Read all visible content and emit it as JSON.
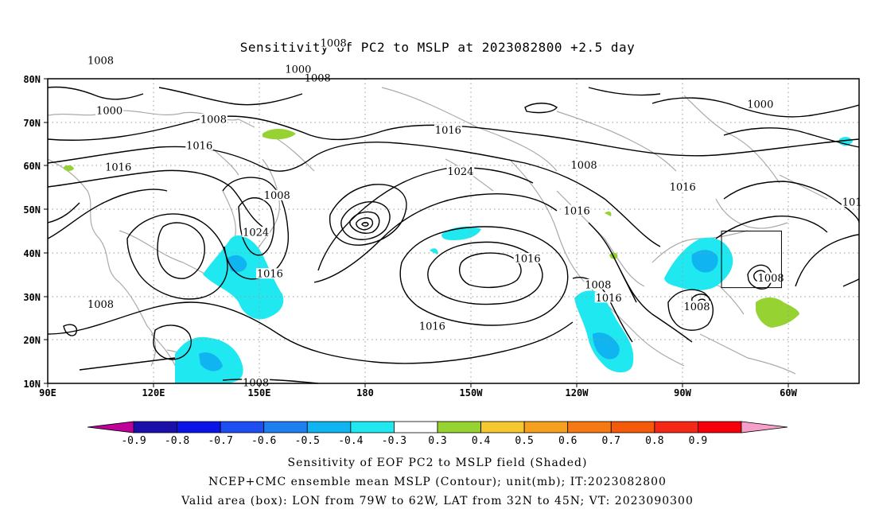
{
  "title": "Sensitivity of PC2 to MSLP at 2023082800 +2.5 day",
  "map": {
    "lat_labels": [
      "80N",
      "70N",
      "60N",
      "50N",
      "40N",
      "30N",
      "20N",
      "10N"
    ],
    "lon_labels": [
      "90E",
      "120E",
      "150E",
      "180",
      "150W",
      "120W",
      "90W",
      "60W"
    ],
    "lon_range": [
      90,
      320
    ],
    "lat_range": [
      10,
      80
    ],
    "contour_labels": [
      {
        "text": "1000",
        "lon": 107.5,
        "lat": 72.5
      },
      {
        "text": "1008",
        "lon": 137,
        "lat": 70.5
      },
      {
        "text": "1016",
        "lon": 133,
        "lat": 64.5
      },
      {
        "text": "1016",
        "lon": 110,
        "lat": 59.5
      },
      {
        "text": "1008",
        "lon": 155,
        "lat": 53
      },
      {
        "text": "1024",
        "lon": 149,
        "lat": 44.5
      },
      {
        "text": "1016",
        "lon": 153,
        "lat": 35
      },
      {
        "text": "1008",
        "lon": 105,
        "lat": 28
      },
      {
        "text": "1008",
        "lon": 149,
        "lat": 10
      },
      {
        "text": "1008",
        "lon": 166.5,
        "lat": 80
      },
      {
        "text": "1008",
        "lon": 105,
        "lat": 84
      },
      {
        "text": "1000",
        "lon": 161,
        "lat": 82
      },
      {
        "text": "1008",
        "lon": 171,
        "lat": 88
      },
      {
        "text": "1016",
        "lon": 203.5,
        "lat": 68
      },
      {
        "text": "1024",
        "lon": 207,
        "lat": 58.5
      },
      {
        "text": "1016",
        "lon": 240,
        "lat": 49.5
      },
      {
        "text": "1008",
        "lon": 242,
        "lat": 60
      },
      {
        "text": "1016",
        "lon": 270,
        "lat": 55
      },
      {
        "text": "1000",
        "lon": 292,
        "lat": 74
      },
      {
        "text": "1016",
        "lon": 199,
        "lat": 23
      },
      {
        "text": "1016",
        "lon": 226,
        "lat": 38.5
      },
      {
        "text": "1008",
        "lon": 246,
        "lat": 32.5
      },
      {
        "text": "1016",
        "lon": 249,
        "lat": 29.5
      },
      {
        "text": "1008",
        "lon": 274,
        "lat": 27.5
      },
      {
        "text": "1008",
        "lon": 295,
        "lat": 34
      },
      {
        "text": "101",
        "lon": 318,
        "lat": 51.5
      }
    ],
    "valid_box": {
      "lon_west": -79,
      "lon_east": -62,
      "lat_south": 32,
      "lat_north": 45
    }
  },
  "colorbar": {
    "colors": [
      "#c0009a",
      "#1a0fa8",
      "#0a14e8",
      "#1e4df0",
      "#1e7ff0",
      "#10b4f0",
      "#20e8f0",
      "#ffffff",
      "#96d232",
      "#f5c832",
      "#f5a01e",
      "#f57a14",
      "#f55a0a",
      "#f52818",
      "#f5000a",
      "#f5a0c8"
    ],
    "labels": [
      "-0.9",
      "-0.8",
      "-0.7",
      "-0.6",
      "-0.5",
      "-0.4",
      "-0.3",
      "0.3",
      "0.4",
      "0.5",
      "0.6",
      "0.7",
      "0.8",
      "0.9"
    ]
  },
  "footer": {
    "line1": "Sensitivity of EOF PC2 to MSLP field (Shaded)",
    "line2": "NCEP+CMC ensemble mean MSLP (Contour); unit(mb); IT:2023082800",
    "line3": "Valid area (box): LON from 79W to 62W, LAT from 32N to 45N; VT: 2023090300"
  }
}
